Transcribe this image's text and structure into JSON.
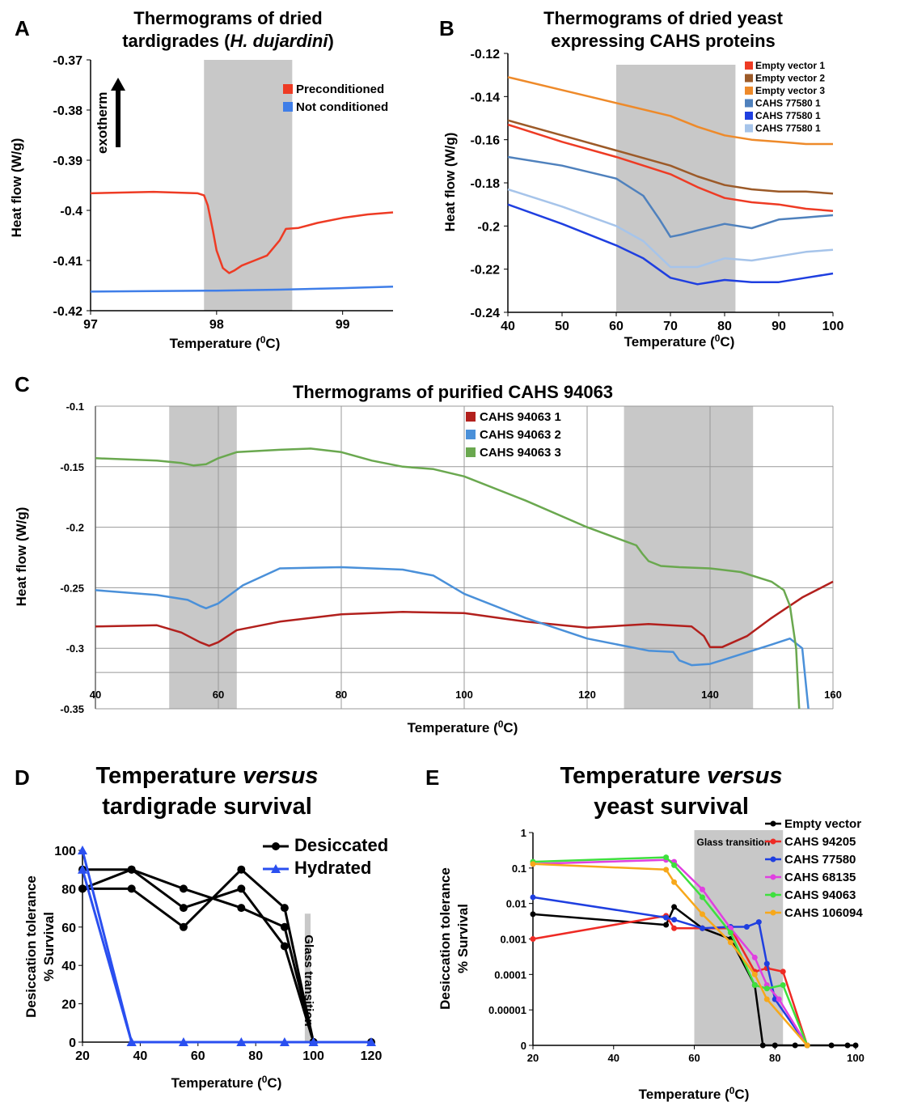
{
  "panels": {
    "A": {
      "letter": "A",
      "title_line1": "Thermograms of dried",
      "title_line2_pre": "tardigrades (",
      "title_line2_em": "H. dujardini",
      "title_line2_post": ")"
    },
    "B": {
      "letter": "B",
      "title_line1": "Thermograms of dried yeast",
      "title_line2": "expressing CAHS proteins"
    },
    "C": {
      "letter": "C",
      "title": "Thermograms of purified CAHS 94063"
    },
    "D": {
      "letter": "D",
      "title_line1_pre": "Temperature ",
      "title_line1_em": "versus",
      "title_line2": "tardigrade survival"
    },
    "E": {
      "letter": "E",
      "title_line1_pre": "Temperature ",
      "title_line1_em": "versus",
      "title_line2": "yeast survival"
    }
  },
  "chart_data": [
    {
      "id": "A",
      "type": "line",
      "xlabel": "Temperature (⁰C)",
      "ylabel": "Heat flow (W/g)",
      "xlim": [
        97,
        99.4
      ],
      "ylim": [
        -0.42,
        -0.37
      ],
      "xticks": [
        "97",
        "98",
        "99"
      ],
      "yticks": [
        "-0.37",
        "-0.38",
        "-0.39",
        "-0.4",
        "-0.41",
        "-0.42"
      ],
      "shaded": [
        [
          97.9,
          98.6
        ]
      ],
      "annotation": "exotherm",
      "series": [
        {
          "name": "Preconditioned",
          "color": "#ee3b24",
          "x": [
            97,
            97.5,
            97.85,
            97.9,
            97.93,
            97.97,
            98.0,
            98.05,
            98.1,
            98.14,
            98.2,
            98.3,
            98.4,
            98.5,
            98.55,
            98.65,
            98.8,
            99.0,
            99.2,
            99.4
          ],
          "y": [
            -0.3966,
            -0.3963,
            -0.3966,
            -0.397,
            -0.399,
            -0.404,
            -0.408,
            -0.4115,
            -0.4125,
            -0.412,
            -0.411,
            -0.41,
            -0.409,
            -0.406,
            -0.4037,
            -0.4035,
            -0.4025,
            -0.4015,
            -0.4008,
            -0.4004
          ]
        },
        {
          "name": "Not conditioned",
          "color": "#3f7ee8",
          "x": [
            97,
            97.5,
            98,
            98.5,
            99,
            99.4
          ],
          "y": [
            -0.4162,
            -0.4161,
            -0.416,
            -0.4158,
            -0.4155,
            -0.4152
          ]
        }
      ]
    },
    {
      "id": "B",
      "type": "line",
      "xlabel": "Temperature (⁰C)",
      "ylabel": "Heat flow (W/g)",
      "xlim": [
        40,
        100
      ],
      "ylim": [
        -0.24,
        -0.12
      ],
      "xticks": [
        "40",
        "50",
        "60",
        "70",
        "80",
        "90",
        "100"
      ],
      "yticks": [
        "-0.12",
        "-0.14",
        "-0.16",
        "-0.18",
        "-0.2",
        "-0.22",
        "-0.24"
      ],
      "shaded": [
        [
          60,
          82
        ]
      ],
      "series": [
        {
          "name": "Empty vector 1",
          "color": "#ee3b24",
          "x": [
            40,
            50,
            60,
            70,
            75,
            80,
            85,
            90,
            95,
            100
          ],
          "y": [
            -0.153,
            -0.161,
            -0.168,
            -0.176,
            -0.182,
            -0.187,
            -0.189,
            -0.19,
            -0.192,
            -0.193
          ]
        },
        {
          "name": "Empty vector 2",
          "color": "#9c5a28",
          "x": [
            40,
            50,
            60,
            70,
            75,
            80,
            85,
            90,
            95,
            100
          ],
          "y": [
            -0.151,
            -0.158,
            -0.165,
            -0.172,
            -0.177,
            -0.181,
            -0.183,
            -0.184,
            -0.184,
            -0.185
          ]
        },
        {
          "name": "Empty vector 3",
          "color": "#ee8a2a",
          "x": [
            40,
            50,
            60,
            70,
            75,
            80,
            85,
            90,
            95,
            100
          ],
          "y": [
            -0.131,
            -0.137,
            -0.143,
            -0.149,
            -0.154,
            -0.158,
            -0.16,
            -0.161,
            -0.162,
            -0.162
          ]
        },
        {
          "name": "CAHS 77580 1",
          "color": "#4f81bd",
          "x": [
            40,
            50,
            60,
            65,
            68,
            70,
            72,
            75,
            80,
            85,
            90,
            95,
            100
          ],
          "y": [
            -0.168,
            -0.172,
            -0.178,
            -0.186,
            -0.197,
            -0.205,
            -0.204,
            -0.202,
            -0.199,
            -0.201,
            -0.197,
            -0.196,
            -0.195
          ]
        },
        {
          "name": "CAHS 77580 1",
          "color": "#1f3fe0",
          "x": [
            40,
            50,
            60,
            65,
            70,
            75,
            80,
            85,
            90,
            95,
            100
          ],
          "y": [
            -0.19,
            -0.199,
            -0.209,
            -0.215,
            -0.224,
            -0.227,
            -0.225,
            -0.226,
            -0.226,
            -0.224,
            -0.222
          ]
        },
        {
          "name": "CAHS 77580 1",
          "color": "#a6c4ea",
          "x": [
            40,
            50,
            60,
            65,
            70,
            75,
            80,
            85,
            90,
            95,
            100
          ],
          "y": [
            -0.183,
            -0.191,
            -0.2,
            -0.207,
            -0.219,
            -0.219,
            -0.215,
            -0.216,
            -0.214,
            -0.212,
            -0.211
          ]
        }
      ]
    },
    {
      "id": "C",
      "type": "line",
      "xlabel": "Temperature (⁰C)",
      "ylabel": "Heat flow (W/g)",
      "xlim": [
        40,
        160
      ],
      "ylim": [
        -0.35,
        -0.1
      ],
      "xticks": [
        "40",
        "60",
        "80",
        "100",
        "120",
        "140",
        "160"
      ],
      "yticks": [
        "-0.1",
        "-0.15",
        "-0.2",
        "-0.25",
        "-0.3",
        "-0.35"
      ],
      "grid": true,
      "shaded": [
        [
          52,
          63
        ],
        [
          126,
          147
        ]
      ],
      "series": [
        {
          "name": "CAHS 94063 1",
          "color": "#b2201d",
          "x": [
            40,
            50,
            54,
            57,
            58.5,
            60,
            63,
            70,
            80,
            90,
            100,
            110,
            120,
            130,
            137,
            139,
            140,
            142,
            146,
            150,
            155,
            160
          ],
          "y": [
            -0.282,
            -0.281,
            -0.287,
            -0.295,
            -0.298,
            -0.295,
            -0.285,
            -0.278,
            -0.272,
            -0.27,
            -0.271,
            -0.278,
            -0.283,
            -0.28,
            -0.282,
            -0.29,
            -0.299,
            -0.299,
            -0.29,
            -0.275,
            -0.258,
            -0.245
          ]
        },
        {
          "name": "CAHS 94063 2",
          "color": "#4a90d9",
          "x": [
            40,
            50,
            55,
            57,
            58,
            60,
            64,
            70,
            80,
            90,
            95,
            100,
            110,
            120,
            130,
            134,
            135,
            137,
            140,
            145,
            150,
            153,
            155,
            156
          ],
          "y": [
            -0.252,
            -0.256,
            -0.26,
            -0.265,
            -0.267,
            -0.263,
            -0.248,
            -0.234,
            -0.233,
            -0.235,
            -0.24,
            -0.255,
            -0.275,
            -0.292,
            -0.302,
            -0.303,
            -0.31,
            -0.314,
            -0.313,
            -0.305,
            -0.297,
            -0.292,
            -0.3,
            -0.35
          ]
        },
        {
          "name": "CAHS 94063 3",
          "color": "#6aa84f",
          "x": [
            40,
            50,
            54,
            56,
            58,
            60,
            63,
            70,
            75,
            80,
            85,
            90,
            95,
            100,
            110,
            120,
            128,
            129,
            130,
            132,
            135,
            140,
            145,
            150,
            152,
            153,
            154,
            154.5
          ],
          "y": [
            -0.143,
            -0.145,
            -0.147,
            -0.149,
            -0.148,
            -0.143,
            -0.138,
            -0.136,
            -0.135,
            -0.138,
            -0.145,
            -0.15,
            -0.152,
            -0.158,
            -0.178,
            -0.2,
            -0.215,
            -0.222,
            -0.228,
            -0.232,
            -0.233,
            -0.234,
            -0.237,
            -0.245,
            -0.252,
            -0.265,
            -0.3,
            -0.35
          ]
        }
      ]
    },
    {
      "id": "D",
      "type": "line",
      "xlabel": "Temperature (⁰C)",
      "ylabel_line1": "Desiccation tolerance",
      "ylabel_line2": "% Survival",
      "xlim": [
        20,
        120
      ],
      "ylim": [
        0,
        100
      ],
      "xticks": [
        "20",
        "40",
        "60",
        "80",
        "100",
        "120"
      ],
      "yticks": [
        "0",
        "20",
        "40",
        "60",
        "80",
        "100"
      ],
      "shaded": [
        [
          97,
          99
        ]
      ],
      "shaded_label": "Glass transition",
      "series": [
        {
          "name": "Desiccated",
          "color": "#000000",
          "marker": "circle",
          "x": [
            20,
            37,
            55,
            75,
            90,
            100,
            120
          ],
          "y": [
            90,
            90,
            80,
            70,
            60,
            0,
            0
          ]
        },
        {
          "name": "",
          "color": "#000000",
          "marker": "circle",
          "x": [
            20,
            37,
            55,
            75,
            90,
            100
          ],
          "y": [
            80,
            90,
            70,
            80,
            50,
            0
          ]
        },
        {
          "name": "",
          "color": "#000000",
          "marker": "circle",
          "x": [
            20,
            37,
            55,
            75,
            90,
            100
          ],
          "y": [
            80,
            80,
            60,
            90,
            70,
            0
          ]
        },
        {
          "name": "Hydrated",
          "color": "#2a4ff0",
          "marker": "triangle",
          "x": [
            20,
            37,
            55,
            75,
            90,
            100,
            120
          ],
          "y": [
            100,
            0,
            0,
            0,
            0,
            0,
            0
          ]
        },
        {
          "name": "",
          "color": "#2a4ff0",
          "marker": "triangle",
          "x": [
            20,
            37
          ],
          "y": [
            90,
            0
          ]
        }
      ]
    },
    {
      "id": "E",
      "type": "line",
      "xlabel": "Temperature (⁰C)",
      "ylabel_line1": "Desiccation tolerance",
      "ylabel_line2": "% Survival",
      "xlim": [
        20,
        100
      ],
      "yscale": "log",
      "xticks": [
        "20",
        "40",
        "60",
        "80",
        "100"
      ],
      "yticks": [
        "1",
        "0.1",
        "0.01",
        "0.001",
        "0.0001",
        "0.00001",
        "0"
      ],
      "shaded": [
        [
          60,
          82
        ]
      ],
      "shaded_label": "Glass transition",
      "series": [
        {
          "name": "Empty vector",
          "color": "#000000",
          "x": [
            20,
            53,
            55,
            62,
            69,
            75,
            77,
            80,
            85,
            88,
            94,
            98,
            100
          ],
          "y": [
            0.005,
            0.0025,
            0.008,
            0.002,
            0.001,
            5e-05,
            0,
            0,
            0,
            0,
            0,
            0,
            0
          ]
        },
        {
          "name": "CAHS 94205",
          "color": "#ee2a24",
          "x": [
            20,
            53,
            55,
            62,
            69,
            75,
            78,
            82,
            88
          ],
          "y": [
            0.001,
            0.0045,
            0.002,
            0.002,
            0.002,
            0.00012,
            0.00015,
            0.00012,
            0
          ]
        },
        {
          "name": "CAHS 77580",
          "color": "#1f3fe0",
          "x": [
            20,
            53,
            55,
            62,
            69,
            73,
            76,
            78,
            80,
            88
          ],
          "y": [
            0.015,
            0.004,
            0.0035,
            0.002,
            0.0022,
            0.0022,
            0.003,
            0.0002,
            2e-05,
            0
          ]
        },
        {
          "name": "CAHS 68135",
          "color": "#e040e0",
          "x": [
            20,
            53,
            55,
            62,
            69,
            75,
            78,
            81,
            88
          ],
          "y": [
            0.13,
            0.17,
            0.15,
            0.025,
            0.002,
            0.0003,
            5e-05,
            2e-05,
            0
          ]
        },
        {
          "name": "CAHS 94063",
          "color": "#3ee03e",
          "x": [
            20,
            53,
            55,
            62,
            69,
            75,
            78,
            82,
            88
          ],
          "y": [
            0.15,
            0.2,
            0.12,
            0.015,
            0.0015,
            5e-05,
            4e-05,
            5e-05,
            0
          ]
        },
        {
          "name": "CAHS 106094",
          "color": "#f7a81b",
          "x": [
            20,
            53,
            55,
            62,
            69,
            75,
            78,
            88
          ],
          "y": [
            0.13,
            0.09,
            0.04,
            0.005,
            0.0008,
            0.0001,
            2e-05,
            0
          ]
        }
      ]
    }
  ]
}
